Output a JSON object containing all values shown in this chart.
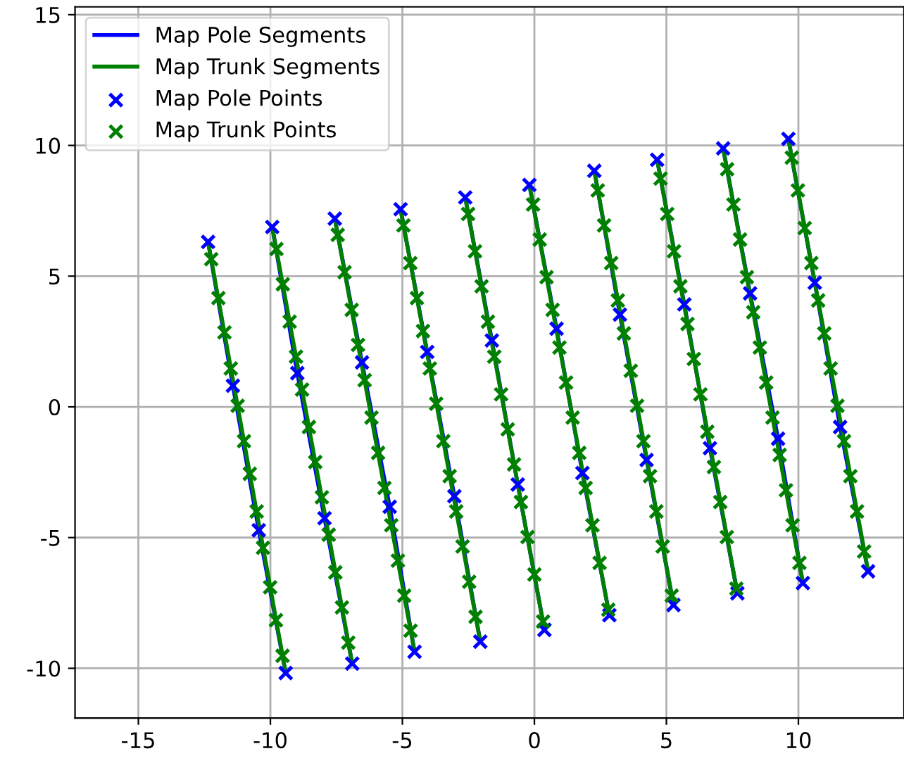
{
  "chart_data": {
    "type": "scatter",
    "xlim": [
      -17.4,
      14.0
    ],
    "ylim": [
      -11.9,
      15.3
    ],
    "xticks": [
      -15,
      -10,
      -5,
      0,
      5,
      10
    ],
    "yticks": [
      -10,
      -5,
      0,
      5,
      10,
      15
    ],
    "grid": true,
    "legend": "top left",
    "series": [
      {
        "name": "Map Pole Segments",
        "type": "line",
        "color": "#0000ff",
        "marker": "none",
        "x": [
          -12.36,
          -11.42,
          -10.44,
          -9.42,
          null,
          -9.93,
          -8.98,
          -7.95,
          -6.9,
          null,
          -7.56,
          -6.53,
          -5.48,
          -4.54,
          null,
          -5.07,
          -4.06,
          -3.03,
          -2.05,
          null,
          -2.62,
          -1.61,
          -0.63,
          0.38,
          null,
          -0.19,
          0.84,
          1.82,
          2.84,
          null,
          2.27,
          3.24,
          4.25,
          5.27,
          null,
          4.65,
          5.68,
          6.65,
          7.69,
          null,
          7.15,
          8.17,
          9.23,
          10.17,
          null,
          9.62,
          10.62,
          11.58,
          12.64
        ],
        "values": [
          6.31,
          0.81,
          -4.72,
          -10.18,
          null,
          6.88,
          1.29,
          -4.26,
          -9.82,
          null,
          7.2,
          1.7,
          -3.82,
          -9.37,
          null,
          7.56,
          2.1,
          -3.42,
          -8.98,
          null,
          8.01,
          2.54,
          -2.97,
          -8.53,
          null,
          8.49,
          2.99,
          -2.53,
          -7.97,
          null,
          9.03,
          3.53,
          -2.03,
          -7.58,
          null,
          9.45,
          3.92,
          -1.58,
          -7.13,
          null,
          9.89,
          4.34,
          -1.22,
          -6.74,
          null,
          10.25,
          4.75,
          -0.77,
          -6.29
        ]
      },
      {
        "name": "Map Trunk Segments",
        "type": "line",
        "color": "#008000",
        "marker": "none",
        "x": [
          -12.36,
          -9.42
        ],
        "values": [
          6.31,
          -10.18
        ]
      },
      {
        "type": "line",
        "color": "#008000",
        "marker": "none",
        "x": [
          -9.93,
          -6.9
        ],
        "values": [
          6.88,
          -9.82
        ]
      },
      {
        "type": "line",
        "color": "#008000",
        "marker": "none",
        "x": [
          -7.56,
          -4.54
        ],
        "values": [
          7.2,
          -9.37
        ]
      },
      {
        "type": "line",
        "color": "#008000",
        "marker": "none",
        "x": [
          -5.07,
          -2.05
        ],
        "values": [
          7.56,
          -8.98
        ]
      },
      {
        "type": "line",
        "color": "#008000",
        "marker": "none",
        "x": [
          -2.62,
          0.38
        ],
        "values": [
          8.01,
          -8.53
        ]
      },
      {
        "type": "line",
        "color": "#008000",
        "marker": "none",
        "x": [
          -0.19,
          2.84
        ],
        "values": [
          8.49,
          -7.97
        ]
      },
      {
        "type": "line",
        "color": "#008000",
        "marker": "none",
        "x": [
          2.27,
          5.27
        ],
        "values": [
          9.03,
          -7.58
        ]
      },
      {
        "type": "line",
        "color": "#008000",
        "marker": "none",
        "x": [
          4.65,
          7.69
        ],
        "values": [
          9.45,
          -7.13
        ]
      },
      {
        "type": "line",
        "color": "#008000",
        "marker": "none",
        "x": [
          7.15,
          10.17
        ],
        "values": [
          9.89,
          -6.74
        ]
      },
      {
        "type": "line",
        "color": "#008000",
        "marker": "none",
        "x": [
          9.62,
          12.64
        ],
        "values": [
          10.25,
          -6.29
        ]
      },
      {
        "name": "Map Pole Points",
        "color": "#0000ff",
        "marker": "cross",
        "x": [
          -12.36,
          -11.42,
          -10.44,
          -9.42,
          -9.93,
          -8.98,
          -7.95,
          -6.9,
          -7.56,
          -6.53,
          -5.48,
          -4.54,
          -5.07,
          -4.06,
          -3.03,
          -2.05,
          -2.62,
          -1.61,
          -0.63,
          0.38,
          -0.19,
          0.84,
          1.82,
          2.84,
          2.27,
          3.24,
          4.25,
          5.27,
          4.65,
          5.68,
          6.65,
          7.69,
          7.15,
          8.17,
          9.23,
          10.17,
          9.62,
          10.62,
          11.58,
          12.64
        ],
        "values": [
          6.31,
          0.81,
          -4.72,
          -10.18,
          6.88,
          1.29,
          -4.26,
          -9.82,
          7.2,
          1.7,
          -3.82,
          -9.37,
          7.56,
          2.1,
          -3.42,
          -8.98,
          8.01,
          2.54,
          -2.97,
          -8.53,
          8.49,
          2.99,
          -2.53,
          -7.97,
          9.03,
          3.53,
          -2.03,
          -7.58,
          9.45,
          3.92,
          -1.58,
          -7.13,
          9.89,
          4.34,
          -1.22,
          -6.74,
          10.25,
          4.75,
          -0.77,
          -6.29
        ]
      },
      {
        "name": "Map Trunk Points",
        "color": "#008000",
        "marker": "cross",
        "x": [
          -12.24,
          -11.97,
          -11.74,
          -11.5,
          -11.24,
          -11.0,
          -10.78,
          -10.52,
          -10.28,
          -10.01,
          -9.79,
          -9.54,
          -9.77,
          -9.53,
          -9.27,
          -9.03,
          -8.8,
          -8.54,
          -8.3,
          -8.05,
          -7.79,
          -7.54,
          -7.29,
          -7.05,
          -7.45,
          -7.19,
          -6.92,
          -6.68,
          -6.43,
          -6.17,
          -5.92,
          -5.68,
          -5.42,
          -5.17,
          -4.93,
          -4.69,
          -4.96,
          -4.7,
          -4.45,
          -4.22,
          -3.96,
          -3.72,
          -3.45,
          -3.21,
          -2.96,
          -2.72,
          -2.47,
          -2.23,
          -2.51,
          -2.25,
          -2.0,
          -1.76,
          -1.52,
          -1.26,
          -1.01,
          -0.77,
          -0.51,
          -0.26,
          0.0,
          0.33,
          -0.05,
          0.2,
          0.46,
          0.69,
          0.95,
          1.2,
          1.45,
          1.7,
          1.94,
          2.2,
          2.47,
          2.8,
          2.4,
          2.64,
          2.91,
          3.16,
          3.39,
          3.65,
          3.89,
          4.13,
          4.38,
          4.62,
          4.86,
          5.2,
          4.78,
          5.03,
          5.29,
          5.53,
          5.8,
          6.04,
          6.29,
          6.55,
          6.8,
          7.04,
          7.29,
          7.65,
          7.3,
          7.54,
          7.79,
          8.05,
          8.29,
          8.54,
          8.78,
          9.02,
          9.29,
          9.53,
          9.78,
          10.04,
          9.75,
          9.98,
          10.24,
          10.49,
          10.75,
          10.98,
          11.22,
          11.48,
          11.73,
          11.97,
          12.22,
          12.49
        ],
        "values": [
          5.65,
          4.16,
          2.85,
          1.47,
          0.04,
          -1.31,
          -2.56,
          -4.0,
          -5.39,
          -6.9,
          -8.16,
          -9.52,
          6.04,
          4.69,
          3.26,
          1.92,
          0.66,
          -0.77,
          -2.11,
          -3.46,
          -4.89,
          -6.33,
          -7.67,
          -9.02,
          6.58,
          5.15,
          3.71,
          2.37,
          1.02,
          -0.41,
          -1.76,
          -3.1,
          -4.53,
          -5.88,
          -7.22,
          -8.56,
          6.94,
          5.5,
          4.16,
          2.9,
          1.47,
          0.12,
          -1.31,
          -2.65,
          -4.0,
          -5.34,
          -6.69,
          -8.03,
          7.38,
          5.95,
          4.61,
          3.26,
          1.92,
          0.48,
          -0.86,
          -2.2,
          -3.64,
          -4.98,
          -6.41,
          -8.21,
          7.74,
          6.4,
          4.96,
          3.71,
          2.27,
          0.93,
          -0.41,
          -1.76,
          -3.1,
          -4.53,
          -5.97,
          -7.76,
          8.28,
          6.94,
          5.5,
          4.07,
          2.81,
          1.38,
          0.04,
          -1.31,
          -2.65,
          -4.0,
          -5.34,
          -7.22,
          8.73,
          7.38,
          5.95,
          4.61,
          3.17,
          1.83,
          0.48,
          -0.95,
          -2.3,
          -3.64,
          -4.98,
          -6.95,
          9.09,
          7.74,
          6.4,
          4.96,
          3.62,
          2.27,
          0.93,
          -0.41,
          -1.84,
          -3.19,
          -4.53,
          -5.97,
          9.53,
          8.28,
          6.84,
          5.5,
          4.07,
          2.81,
          1.47,
          0.04,
          -1.31,
          -2.65,
          -4.0,
          -5.53
        ]
      }
    ]
  }
}
